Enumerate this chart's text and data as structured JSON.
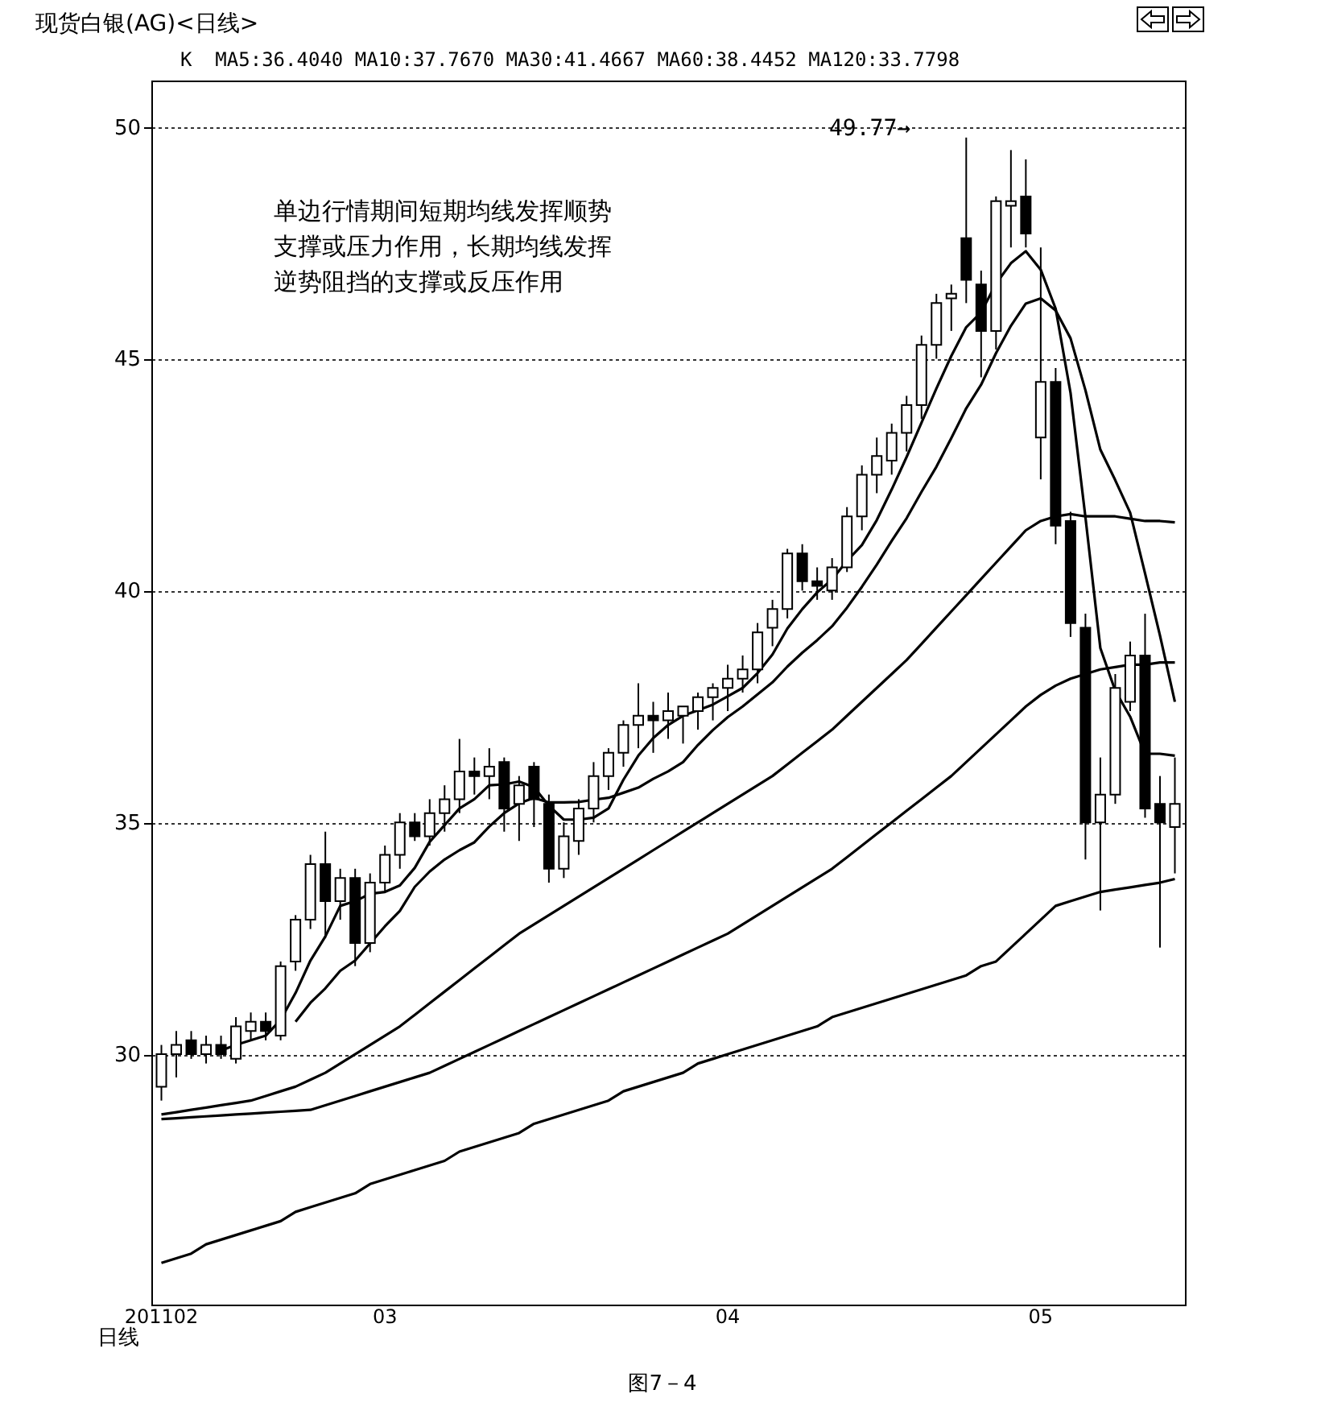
{
  "chart_data": {
    "type": "candlestick",
    "title": "现货白银(AG)<日线>",
    "xlabel": "日线",
    "annotations": [
      "K  MA5:36.4040 MA10:37.7670 MA30:41.4667 MA60:38.4452 MA120:33.7798",
      "单边行情期间短期均线发挥顺势",
      "支撑或压力作用，长期均线发挥",
      "逆势阻挡的支撑或反压作用",
      "49.77→",
      "图7－4"
    ],
    "categories": [
      "201102",
      null,
      null,
      null,
      null,
      null,
      null,
      null,
      null,
      null,
      null,
      null,
      null,
      null,
      null,
      "03",
      null,
      null,
      null,
      null,
      null,
      null,
      null,
      null,
      null,
      null,
      null,
      null,
      null,
      null,
      null,
      null,
      null,
      null,
      null,
      null,
      null,
      null,
      "04",
      null,
      null,
      null,
      null,
      null,
      null,
      null,
      null,
      null,
      null,
      null,
      null,
      null,
      null,
      null,
      null,
      null,
      null,
      null,
      null,
      "05",
      null,
      null,
      null,
      null,
      null,
      null,
      null,
      null,
      null
    ],
    "ohlc": [
      [
        29.3,
        30.2,
        29.0,
        30.0
      ],
      [
        30.0,
        30.5,
        29.5,
        30.2
      ],
      [
        30.3,
        30.5,
        29.9,
        30.0
      ],
      [
        30.0,
        30.4,
        29.8,
        30.2
      ],
      [
        30.2,
        30.4,
        29.9,
        30.0
      ],
      [
        29.9,
        30.8,
        29.8,
        30.6
      ],
      [
        30.5,
        30.9,
        30.3,
        30.7
      ],
      [
        30.7,
        30.9,
        30.3,
        30.5
      ],
      [
        30.4,
        32.0,
        30.3,
        31.9
      ],
      [
        32.0,
        33.0,
        31.8,
        32.9
      ],
      [
        32.9,
        34.3,
        32.7,
        34.1
      ],
      [
        34.1,
        34.8,
        32.5,
        33.3
      ],
      [
        33.3,
        34.0,
        32.9,
        33.8
      ],
      [
        33.8,
        34.0,
        31.9,
        32.4
      ],
      [
        32.4,
        33.9,
        32.2,
        33.7
      ],
      [
        33.7,
        34.5,
        33.5,
        34.3
      ],
      [
        34.3,
        35.2,
        34.0,
        35.0
      ],
      [
        35.0,
        35.2,
        34.6,
        34.7
      ],
      [
        34.7,
        35.5,
        34.5,
        35.2
      ],
      [
        35.2,
        35.8,
        34.8,
        35.5
      ],
      [
        35.5,
        36.8,
        35.2,
        36.1
      ],
      [
        36.1,
        36.4,
        35.6,
        36.0
      ],
      [
        36.0,
        36.6,
        35.5,
        36.2
      ],
      [
        36.3,
        36.4,
        34.8,
        35.3
      ],
      [
        35.4,
        36.0,
        34.6,
        35.8
      ],
      [
        36.2,
        36.3,
        34.9,
        35.5
      ],
      [
        35.4,
        35.6,
        33.7,
        34.0
      ],
      [
        34.0,
        35.0,
        33.8,
        34.7
      ],
      [
        34.6,
        35.5,
        34.3,
        35.3
      ],
      [
        35.3,
        36.3,
        35.0,
        36.0
      ],
      [
        36.0,
        36.6,
        35.7,
        36.5
      ],
      [
        36.5,
        37.2,
        36.2,
        37.1
      ],
      [
        37.1,
        38.0,
        36.6,
        37.3
      ],
      [
        37.3,
        37.6,
        36.5,
        37.2
      ],
      [
        37.2,
        37.8,
        36.8,
        37.4
      ],
      [
        37.3,
        37.5,
        36.7,
        37.5
      ],
      [
        37.4,
        37.8,
        37.0,
        37.7
      ],
      [
        37.7,
        38.0,
        37.2,
        37.9
      ],
      [
        37.9,
        38.4,
        37.4,
        38.1
      ],
      [
        38.1,
        38.6,
        37.8,
        38.3
      ],
      [
        38.3,
        39.3,
        38.0,
        39.1
      ],
      [
        39.2,
        39.8,
        38.8,
        39.6
      ],
      [
        39.6,
        40.9,
        39.4,
        40.8
      ],
      [
        40.8,
        41.0,
        40.0,
        40.2
      ],
      [
        40.2,
        40.5,
        39.8,
        40.1
      ],
      [
        40.0,
        40.7,
        39.8,
        40.5
      ],
      [
        40.5,
        41.8,
        40.4,
        41.6
      ],
      [
        41.6,
        42.7,
        41.3,
        42.5
      ],
      [
        42.5,
        43.3,
        42.1,
        42.9
      ],
      [
        42.8,
        43.6,
        42.5,
        43.4
      ],
      [
        43.4,
        44.2,
        43.0,
        44.0
      ],
      [
        44.0,
        45.5,
        43.7,
        45.3
      ],
      [
        45.3,
        46.4,
        45.0,
        46.2
      ],
      [
        46.3,
        46.6,
        45.6,
        46.4
      ],
      [
        47.6,
        49.77,
        46.2,
        46.7
      ],
      [
        46.6,
        46.9,
        44.6,
        45.6
      ],
      [
        45.6,
        48.5,
        45.2,
        48.4
      ],
      [
        48.3,
        49.5,
        47.4,
        48.4
      ],
      [
        48.5,
        49.3,
        47.4,
        47.7
      ],
      [
        43.3,
        47.4,
        42.4,
        44.5
      ],
      [
        44.5,
        44.8,
        41.0,
        41.4
      ],
      [
        41.5,
        41.7,
        39.0,
        39.3
      ],
      [
        39.2,
        39.5,
        34.2,
        35.0
      ],
      [
        35.0,
        36.4,
        33.1,
        35.6
      ],
      [
        35.6,
        38.2,
        35.4,
        37.9
      ],
      [
        37.6,
        38.9,
        37.4,
        38.6
      ],
      [
        38.6,
        39.5,
        35.1,
        35.3
      ],
      [
        35.4,
        36.0,
        32.3,
        35.0
      ],
      [
        34.9,
        36.4,
        33.9,
        35.4
      ]
    ],
    "series": [
      {
        "type": "line",
        "color": "#000000",
        "values": [
          null,
          null,
          null,
          null,
          30.08,
          30.2,
          30.3,
          30.4,
          30.74,
          31.32,
          32.02,
          32.54,
          33.2,
          33.3,
          33.46,
          33.5,
          33.64,
          34.02,
          34.58,
          34.94,
          35.3,
          35.5,
          35.8,
          35.82,
          35.88,
          35.76,
          35.36,
          35.06,
          35.06,
          35.1,
          35.3,
          35.92,
          36.44,
          36.82,
          37.1,
          37.3,
          37.42,
          37.54,
          37.72,
          37.9,
          38.22,
          38.62,
          39.18,
          39.6,
          39.96,
          40.24,
          40.64,
          40.98,
          41.52,
          42.18,
          42.88,
          43.62,
          44.36,
          45.06,
          45.68,
          46.0,
          46.62,
          47.06,
          47.32,
          46.92,
          46.08,
          44.26,
          41.58,
          38.76,
          37.84,
          37.28,
          36.48,
          36.48,
          36.44
        ]
      },
      {
        "type": "line",
        "color": "#000000",
        "values": [
          null,
          null,
          null,
          null,
          null,
          null,
          null,
          null,
          null,
          30.7,
          31.11,
          31.42,
          31.8,
          32.02,
          32.39,
          32.76,
          33.09,
          33.61,
          33.94,
          34.2,
          34.4,
          34.57,
          34.91,
          35.2,
          35.41,
          35.53,
          35.43,
          35.43,
          35.44,
          35.49,
          35.53,
          35.64,
          35.75,
          35.94,
          36.1,
          36.3,
          36.67,
          36.99,
          37.27,
          37.5,
          37.76,
          38.02,
          38.36,
          38.66,
          38.93,
          39.23,
          39.63,
          40.08,
          40.56,
          41.07,
          41.56,
          42.13,
          42.67,
          43.29,
          43.93,
          44.44,
          45.12,
          45.71,
          46.19,
          46.3,
          46.04,
          45.44,
          44.32,
          43.04,
          42.38,
          41.68,
          40.37,
          39.03,
          37.6
        ]
      },
      {
        "type": "line",
        "color": "#000000",
        "values": [
          28.7,
          28.75,
          28.8,
          28.85,
          28.9,
          28.95,
          29.0,
          29.1,
          29.2,
          29.3,
          29.45,
          29.6,
          29.8,
          30.0,
          30.2,
          30.4,
          30.6,
          30.85,
          31.1,
          31.35,
          31.6,
          31.85,
          32.1,
          32.35,
          32.6,
          32.8,
          33.0,
          33.2,
          33.4,
          33.6,
          33.8,
          34.0,
          34.2,
          34.4,
          34.6,
          34.8,
          35.0,
          35.2,
          35.4,
          35.6,
          35.8,
          36.0,
          36.25,
          36.5,
          36.75,
          37.0,
          37.3,
          37.6,
          37.9,
          38.2,
          38.5,
          38.85,
          39.2,
          39.55,
          39.9,
          40.25,
          40.6,
          40.95,
          41.3,
          41.5,
          41.6,
          41.65,
          41.6,
          41.6,
          41.6,
          41.55,
          41.5,
          41.5,
          41.47
        ]
      },
      {
        "type": "line",
        "color": "#000000",
        "values": [
          28.6,
          28.62,
          28.64,
          28.66,
          28.68,
          28.7,
          28.72,
          28.74,
          28.76,
          28.78,
          28.8,
          28.9,
          29.0,
          29.1,
          29.2,
          29.3,
          29.4,
          29.5,
          29.6,
          29.75,
          29.9,
          30.05,
          30.2,
          30.35,
          30.5,
          30.65,
          30.8,
          30.95,
          31.1,
          31.25,
          31.4,
          31.55,
          31.7,
          31.85,
          32.0,
          32.15,
          32.3,
          32.45,
          32.6,
          32.8,
          33.0,
          33.2,
          33.4,
          33.6,
          33.8,
          34.0,
          34.25,
          34.5,
          34.75,
          35.0,
          35.25,
          35.5,
          35.75,
          36.0,
          36.3,
          36.6,
          36.9,
          37.2,
          37.5,
          37.75,
          37.95,
          38.1,
          38.2,
          38.3,
          38.35,
          38.4,
          38.4,
          38.45,
          38.45
        ]
      },
      {
        "type": "line",
        "color": "#000000",
        "values": [
          25.5,
          25.6,
          25.7,
          25.9,
          26.0,
          26.1,
          26.2,
          26.3,
          26.4,
          26.6,
          26.7,
          26.8,
          26.9,
          27.0,
          27.2,
          27.3,
          27.4,
          27.5,
          27.6,
          27.7,
          27.9,
          28.0,
          28.1,
          28.2,
          28.3,
          28.5,
          28.6,
          28.7,
          28.8,
          28.9,
          29.0,
          29.2,
          29.3,
          29.4,
          29.5,
          29.6,
          29.8,
          29.9,
          30.0,
          30.1,
          30.2,
          30.3,
          30.4,
          30.5,
          30.6,
          30.8,
          30.9,
          31.0,
          31.1,
          31.2,
          31.3,
          31.4,
          31.5,
          31.6,
          31.7,
          31.9,
          32.0,
          32.3,
          32.6,
          32.9,
          33.2,
          33.3,
          33.4,
          33.5,
          33.55,
          33.6,
          33.65,
          33.7,
          33.78
        ]
      }
    ],
    "ylim": [
      24.6,
      51.0
    ],
    "yticks": [
      30,
      35,
      40,
      45,
      50
    ],
    "grid": "y"
  }
}
